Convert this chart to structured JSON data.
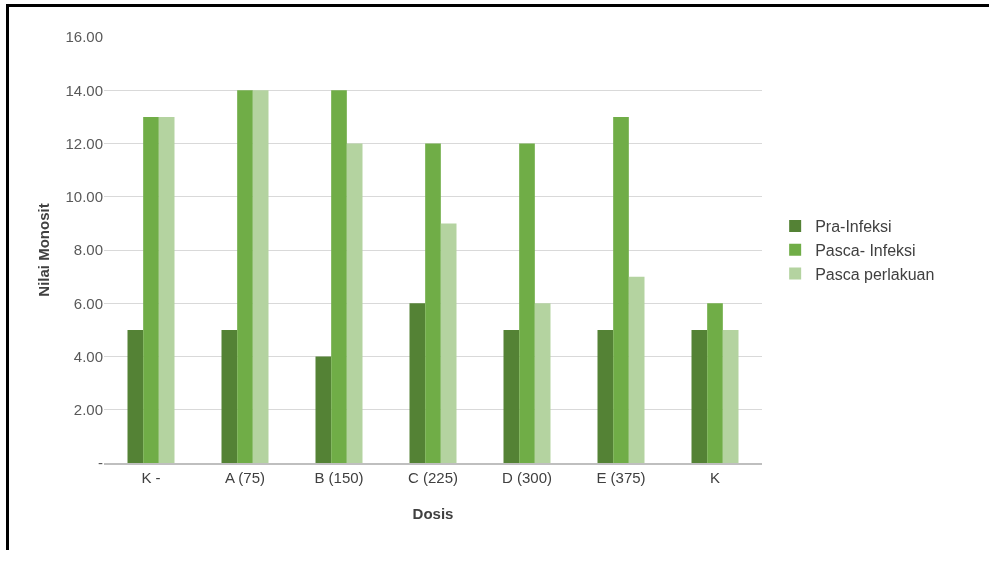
{
  "chart_data": {
    "type": "bar",
    "xlabel": "Dosis",
    "ylabel": "Nilai Monosit",
    "categories": [
      "K -",
      "A (75)",
      "B (150)",
      "C (225)",
      "D (300)",
      "E (375)",
      "K"
    ],
    "series": [
      {
        "name": "Pra-Infeksi",
        "color": "#548235",
        "values": [
          5,
          5,
          4,
          6,
          5,
          5,
          5
        ]
      },
      {
        "name": "Pasca- Infeksi",
        "color": "#70ad47",
        "values": [
          13,
          14,
          14,
          12,
          12,
          13,
          6
        ]
      },
      {
        "name": "Pasca perlakuan",
        "color": "#b4d3a0",
        "values": [
          13,
          14,
          12,
          9,
          6,
          7,
          5
        ]
      }
    ],
    "ylim": [
      0,
      16
    ],
    "yticks": [
      {
        "value": 0,
        "label": "-"
      },
      {
        "value": 2,
        "label": "2.00"
      },
      {
        "value": 4,
        "label": "4.00"
      },
      {
        "value": 6,
        "label": "6.00"
      },
      {
        "value": 8,
        "label": "8.00"
      },
      {
        "value": 10,
        "label": "10.00"
      },
      {
        "value": 12,
        "label": "12.00"
      },
      {
        "value": 14,
        "label": "14.00"
      },
      {
        "value": 16,
        "label": "16.00"
      }
    ],
    "grid": "y",
    "legend": "right"
  }
}
